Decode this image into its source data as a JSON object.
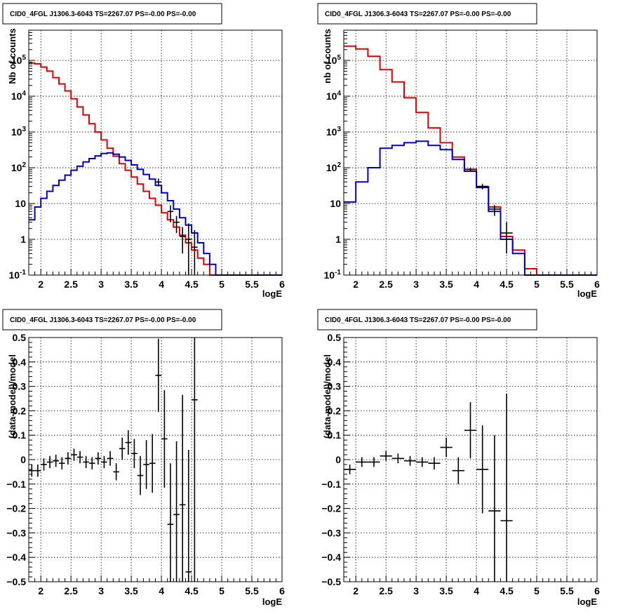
{
  "colors": {
    "data": "#000000",
    "model_total": "#e00000",
    "model_source": "#0000cc",
    "grid": "#000000"
  },
  "chart_data": [
    {
      "type": "line",
      "title": "CID0_4FGL J1306.3-6043 TS=2267.07 PS=-0.00 PS=-0.00",
      "xlabel": "logE",
      "ylabel": "Nb of counts",
      "xlim": [
        1.8,
        6.0
      ],
      "ylim": [
        0.1,
        700000
      ],
      "log_y": true,
      "grid": true,
      "x_ticks": [
        "2",
        "2.5",
        "3",
        "3.5",
        "4",
        "4.5",
        "5",
        "5.5",
        "6"
      ],
      "y_ticks": [
        "10^-1",
        "1",
        "10",
        "10^2",
        "10^3",
        "10^4",
        "10^5"
      ],
      "bin_edges": [
        1.8,
        1.9,
        2.0,
        2.1,
        2.2,
        2.3,
        2.4,
        2.5,
        2.6,
        2.7,
        2.8,
        2.9,
        3.0,
        3.1,
        3.2,
        3.3,
        3.4,
        3.5,
        3.6,
        3.7,
        3.8,
        3.9,
        4.0,
        4.1,
        4.2,
        4.3,
        4.4,
        4.5,
        4.6,
        4.7,
        4.8,
        4.9,
        5.0,
        5.1,
        5.2,
        5.3,
        5.4,
        5.5,
        5.6,
        5.7,
        5.8,
        5.9,
        6.0
      ],
      "series": [
        {
          "role": "model_total",
          "values": [
            85000,
            80000,
            65000,
            50000,
            33000,
            22000,
            14000,
            8500,
            5000,
            3000,
            1700,
            1000,
            600,
            350,
            210,
            130,
            85,
            55,
            35,
            22,
            14,
            9,
            5.5,
            3.5,
            2.2,
            1.3,
            0.8,
            0.5,
            0.3,
            0.2,
            0.1,
            0.1,
            0.1,
            0.1,
            0.1,
            0.1,
            0.1,
            0.1,
            0.1,
            0.1,
            0.1,
            0.1
          ]
        },
        {
          "role": "model_source",
          "values": [
            3.5,
            8,
            14,
            22,
            32,
            45,
            62,
            85,
            110,
            145,
            180,
            215,
            250,
            260,
            240,
            200,
            160,
            120,
            90,
            65,
            48,
            32,
            20,
            12,
            7,
            4,
            2.5,
            1.5,
            0.8,
            0.4,
            0.2,
            0.1,
            0.1,
            0.1,
            0.1,
            0.1,
            0.1,
            0.1,
            0.1,
            0.1,
            0.1,
            0.1
          ]
        },
        {
          "role": "data",
          "x": [
            3.95,
            4.15,
            4.25,
            4.35,
            4.45,
            4.55
          ],
          "values": [
            40,
            6,
            3,
            1.2,
            1,
            0.6
          ],
          "lo": [
            30,
            3,
            1.5,
            0.4,
            0.1,
            0.1
          ],
          "hi": [
            50,
            9,
            4.5,
            2.2,
            2.8,
            1.8
          ]
        }
      ]
    },
    {
      "type": "line",
      "title": "CID0_4FGL J1306.3-6043 TS=2267.07 PS=-0.00 PS=-0.00",
      "xlabel": "logE",
      "ylabel": "nb of counts",
      "xlim": [
        1.8,
        6.0
      ],
      "ylim": [
        0.1,
        700000
      ],
      "log_y": true,
      "grid": true,
      "x_ticks": [
        "2",
        "2.5",
        "3",
        "3.5",
        "4",
        "4.5",
        "5",
        "5.5",
        "6"
      ],
      "y_ticks": [
        "10^-1",
        "1",
        "10",
        "10^2",
        "10^3",
        "10^4",
        "10^5"
      ],
      "bin_edges": [
        1.8,
        2.0,
        2.2,
        2.4,
        2.6,
        2.8,
        3.0,
        3.2,
        3.4,
        3.6,
        3.8,
        4.0,
        4.2,
        4.4,
        4.6,
        4.8,
        5.0,
        5.2,
        5.4,
        5.6,
        5.8,
        6.0
      ],
      "series": [
        {
          "role": "model_total",
          "values": [
            250000,
            210000,
            130000,
            55000,
            25000,
            9000,
            3500,
            1300,
            500,
            200,
            90,
            30,
            8,
            1.2,
            0.5,
            0.15,
            0.1,
            0.1,
            0.1,
            0.1,
            0.1
          ]
        },
        {
          "role": "model_source",
          "values": [
            11,
            40,
            100,
            350,
            420,
            500,
            550,
            420,
            320,
            170,
            80,
            28,
            6,
            1,
            0.4,
            0.1,
            0.1,
            0.1,
            0.1,
            0.1,
            0.1
          ]
        },
        {
          "role": "data",
          "x": [
            3.9,
            4.1,
            4.3,
            4.5
          ],
          "values": [
            90,
            30,
            7,
            1.5
          ],
          "lo": [
            80,
            25,
            4.5,
            0.4
          ],
          "hi": [
            100,
            35,
            9,
            3
          ]
        }
      ]
    },
    {
      "type": "scatter",
      "title": "CID0_4FGL J1306.3-6043 TS=2267.07 PS=-0.00 PS=-0.00",
      "xlabel": "logE",
      "ylabel": "(data-model)/model",
      "xlim": [
        1.8,
        6.0
      ],
      "ylim": [
        -0.5,
        0.5
      ],
      "grid": true,
      "x_ticks": [
        "2",
        "2.5",
        "3",
        "3.5",
        "4",
        "4.5",
        "5",
        "5.5",
        "6"
      ],
      "y_ticks": [
        "-0.5",
        "-0.4",
        "-0.3",
        "-0.2",
        "-0.1",
        "0",
        "0.1",
        "0.2",
        "0.3",
        "0.4",
        "0.5"
      ],
      "bin_width": 0.1,
      "points": [
        {
          "x": 1.85,
          "y": -0.045,
          "err": 0.025
        },
        {
          "x": 1.95,
          "y": -0.045,
          "err": 0.025
        },
        {
          "x": 2.05,
          "y": -0.02,
          "err": 0.025
        },
        {
          "x": 2.15,
          "y": -0.01,
          "err": 0.025
        },
        {
          "x": 2.25,
          "y": -0.005,
          "err": 0.025
        },
        {
          "x": 2.35,
          "y": -0.015,
          "err": 0.025
        },
        {
          "x": 2.45,
          "y": 0.005,
          "err": 0.025
        },
        {
          "x": 2.55,
          "y": 0.02,
          "err": 0.025
        },
        {
          "x": 2.65,
          "y": 0.01,
          "err": 0.025
        },
        {
          "x": 2.75,
          "y": -0.01,
          "err": 0.025
        },
        {
          "x": 2.85,
          "y": -0.015,
          "err": 0.025
        },
        {
          "x": 2.95,
          "y": 0.005,
          "err": 0.025
        },
        {
          "x": 3.05,
          "y": -0.01,
          "err": 0.025
        },
        {
          "x": 3.15,
          "y": 0.005,
          "err": 0.03
        },
        {
          "x": 3.25,
          "y": -0.05,
          "err": 0.035
        },
        {
          "x": 3.35,
          "y": 0.045,
          "err": 0.045
        },
        {
          "x": 3.45,
          "y": 0.07,
          "err": 0.05
        },
        {
          "x": 3.55,
          "y": 0.025,
          "err": 0.06
        },
        {
          "x": 3.65,
          "y": -0.065,
          "err": 0.08
        },
        {
          "x": 3.75,
          "y": -0.02,
          "err": 0.1
        },
        {
          "x": 3.85,
          "y": -0.015,
          "err": 0.12
        },
        {
          "x": 3.95,
          "y": 0.345,
          "err": 0.15
        },
        {
          "x": 4.05,
          "y": 0.085,
          "err": 0.2
        },
        {
          "x": 4.15,
          "y": -0.265,
          "err": 0.25
        },
        {
          "x": 4.25,
          "y": -0.225,
          "err": 0.3
        },
        {
          "x": 4.35,
          "y": -0.185,
          "err": 0.45
        },
        {
          "x": 4.45,
          "y": -0.46,
          "err": 0.5
        },
        {
          "x": 4.55,
          "y": 0.245,
          "err": 0.75
        }
      ]
    },
    {
      "type": "scatter",
      "title": "CID0_4FGL J1306.3-6043 TS=2267.07 PS=-0.00 PS=-0.00",
      "xlabel": "logE",
      "ylabel": "(data-model)/model",
      "xlim": [
        1.8,
        6.0
      ],
      "ylim": [
        -0.5,
        0.5
      ],
      "grid": true,
      "x_ticks": [
        "2",
        "2.5",
        "3",
        "3.5",
        "4",
        "4.5",
        "5",
        "5.5",
        "6"
      ],
      "y_ticks": [
        "-0.5",
        "-0.4",
        "-0.3",
        "-0.2",
        "-0.1",
        "0",
        "0.1",
        "0.2",
        "0.3",
        "0.4",
        "0.5"
      ],
      "bin_width": 0.2,
      "points": [
        {
          "x": 1.9,
          "y": -0.04,
          "err": 0.02
        },
        {
          "x": 2.1,
          "y": -0.01,
          "err": 0.02
        },
        {
          "x": 2.3,
          "y": -0.01,
          "err": 0.02
        },
        {
          "x": 2.5,
          "y": 0.015,
          "err": 0.02
        },
        {
          "x": 2.7,
          "y": 0.005,
          "err": 0.02
        },
        {
          "x": 2.9,
          "y": -0.005,
          "err": 0.02
        },
        {
          "x": 3.1,
          "y": -0.01,
          "err": 0.02
        },
        {
          "x": 3.3,
          "y": -0.015,
          "err": 0.025
        },
        {
          "x": 3.5,
          "y": 0.05,
          "err": 0.04
        },
        {
          "x": 3.7,
          "y": -0.045,
          "err": 0.055
        },
        {
          "x": 3.9,
          "y": 0.12,
          "err": 0.115
        },
        {
          "x": 4.1,
          "y": -0.04,
          "err": 0.18
        },
        {
          "x": 4.3,
          "y": -0.21,
          "err": 0.31
        },
        {
          "x": 4.5,
          "y": -0.25,
          "err": 0.52
        }
      ]
    }
  ]
}
